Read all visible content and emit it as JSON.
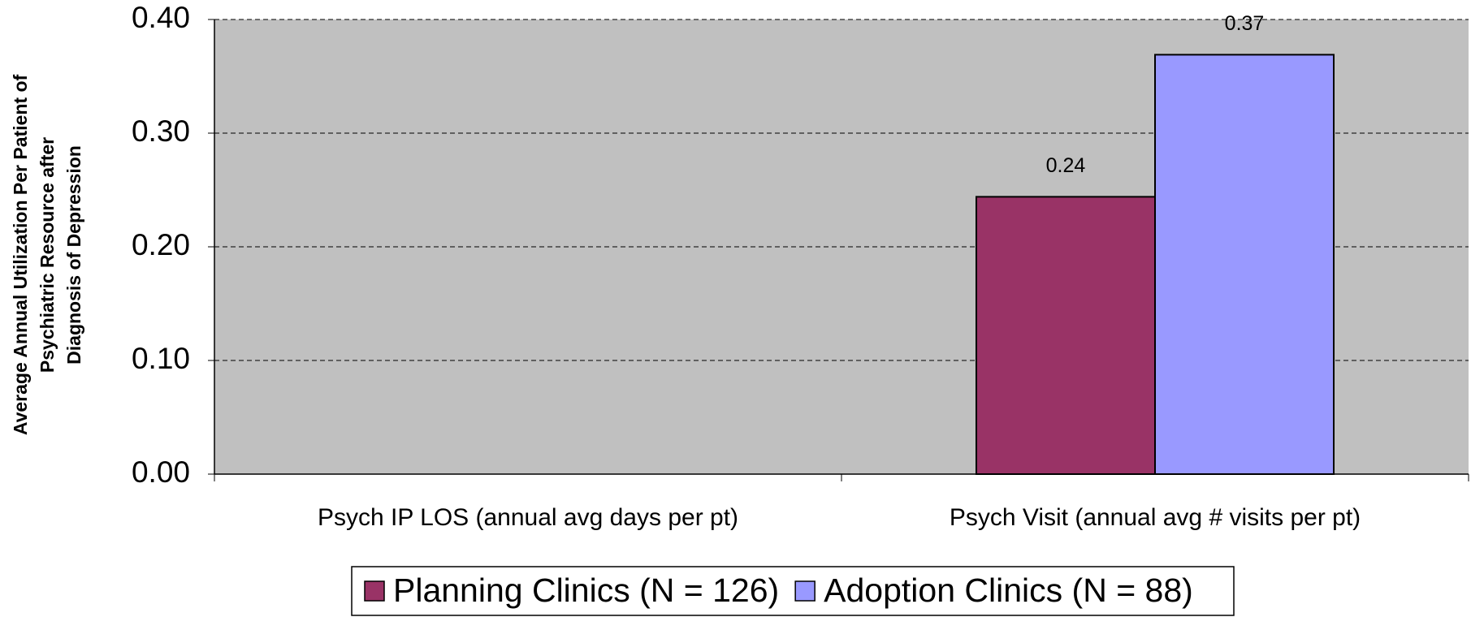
{
  "chart_data": {
    "type": "bar",
    "ylabel": [
      "Average Annual Utilization Per Patient of",
      "Psychiatric Resource after",
      "Diagnosis of Depression"
    ],
    "categories": [
      "Psych IP LOS (annual avg days per pt)",
      "Psych Visit (annual avg # visits per pt)"
    ],
    "series": [
      {
        "name": "Planning Clinics (N = 126)",
        "color": "#993366",
        "values": [
          null,
          0.244
        ],
        "value_labels": [
          null,
          "0.24"
        ]
      },
      {
        "name": "Adoption Clinics (N = 88)",
        "color": "#9999ff",
        "values": [
          null,
          0.369
        ],
        "value_labels": [
          null,
          "0.37"
        ]
      }
    ],
    "ylim": [
      0,
      0.4
    ],
    "yticks": [
      {
        "value": 0,
        "label": "0.00"
      },
      {
        "value": 0.1,
        "label": "0.10"
      },
      {
        "value": 0.2,
        "label": "0.20"
      },
      {
        "value": 0.3,
        "label": "0.30"
      },
      {
        "value": 0.4,
        "label": "0.40"
      }
    ],
    "grid": true,
    "legend": "bottom",
    "background": "#c0c0c0"
  }
}
